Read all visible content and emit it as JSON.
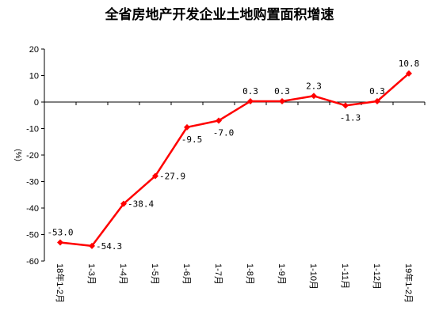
{
  "chart_data": {
    "type": "line",
    "title": "全省房地产开发企业土地购置面积增速",
    "ylabel": "(%)",
    "xlabel": "",
    "ylim": [
      -60,
      20
    ],
    "yticks": [
      20,
      10,
      0,
      -10,
      -20,
      -30,
      -40,
      -50,
      -60
    ],
    "grid": false,
    "legend": "none",
    "categories": [
      "18年1-2月",
      "1-3月",
      "1-4月",
      "1-5月",
      "1-6月",
      "1-7月",
      "1-8月",
      "1-9月",
      "1-10月",
      "1-11月",
      "1-12月",
      "19年1-2月"
    ],
    "series": [
      {
        "values": [
          -53.0,
          -54.3,
          -38.4,
          -27.9,
          -9.5,
          -7.0,
          0.3,
          0.3,
          2.3,
          -1.3,
          0.3,
          10.8
        ],
        "labels": [
          "-53.0",
          "-54.3",
          "-38.4",
          "-27.9",
          "-9.5",
          "-7.0",
          "0.3",
          "0.3",
          "2.3",
          "-1.3",
          "0.3",
          "10.8"
        ],
        "color": "#ff0000"
      }
    ]
  }
}
